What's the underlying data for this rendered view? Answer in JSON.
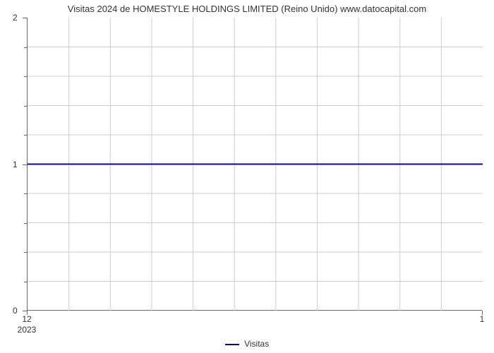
{
  "chart": {
    "type": "line",
    "title": "Visitas 2024 de HOMESTYLE HOLDINGS LIMITED (Reino Unido) www.datocapital.com",
    "title_fontsize": 13,
    "series": {
      "name": "Visitas",
      "color": "#0000cc",
      "line_width": 2,
      "x": [
        12,
        1
      ],
      "y": [
        1,
        1
      ]
    },
    "xaxis": {
      "ticks": [
        "12",
        "1"
      ],
      "year_label": "2023",
      "range": [
        12,
        1
      ]
    },
    "yaxis": {
      "ticks": [
        "0",
        "1",
        "2"
      ],
      "range": [
        0,
        2
      ],
      "minor_count": 4
    },
    "grid": {
      "color": "#cccccc",
      "minor_color": "#e5e5e5",
      "x_divisions": 11,
      "y_major": 2,
      "y_minor_per_major": 5
    },
    "background_color": "#ffffff",
    "plot_border_color": "#666666",
    "legend": {
      "label": "Visitas",
      "line_color": "#0000cc"
    }
  }
}
